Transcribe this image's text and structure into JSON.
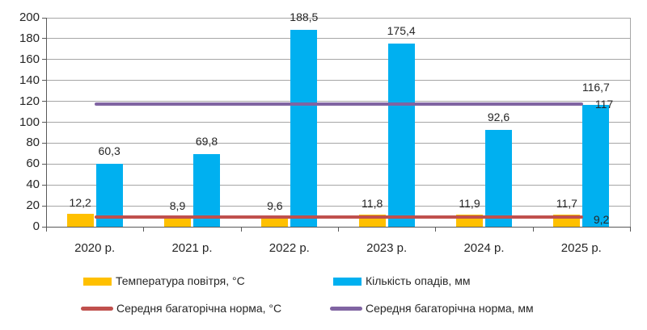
{
  "page": {
    "background": "#FFFFFF"
  },
  "colors": {
    "grid": "#A6A6A6",
    "axis": "#595959",
    "text": "#262626"
  },
  "chart_data": {
    "type": "bar",
    "title": "",
    "xlabel": "",
    "ylabel": "",
    "categories": [
      "2020 р.",
      "2021 р.",
      "2022 р.",
      "2023 р.",
      "2024 р.",
      "2025 р."
    ],
    "yticks": [
      "0",
      "20",
      "40",
      "60",
      "80",
      "100",
      "120",
      "140",
      "160",
      "180",
      "200"
    ],
    "ylim": [
      0,
      200
    ],
    "ytick_step": 20,
    "grid": true,
    "legend_position": "bottom",
    "series": [
      {
        "key": "temperature",
        "kind": "bar",
        "name": "Температура повітря, °С",
        "color": "#FFC000",
        "values": [
          12.2,
          8.9,
          9.6,
          11.8,
          11.9,
          11.7
        ],
        "labels": [
          "12,2",
          "8,9",
          "9,6",
          "11,8",
          "11,9",
          "11,7"
        ]
      },
      {
        "key": "precipitation",
        "kind": "bar",
        "name": "Кількість опадів, мм",
        "color": "#00B0F0",
        "values": [
          60.3,
          69.8,
          188.5,
          175.4,
          92.6,
          116.7
        ],
        "labels": [
          "60,3",
          "69,8",
          "188,5",
          "175,4",
          "92,6",
          "116,7"
        ]
      },
      {
        "key": "norm-temperature",
        "kind": "line",
        "name": "Середня багаторічна норма, °С",
        "color": "#C0504D",
        "value": 9.2,
        "label": "9,2"
      },
      {
        "key": "norm-precipitation",
        "kind": "line",
        "name": "Середня багаторічна норма, мм",
        "color": "#8064A2",
        "value": 117,
        "label": "117"
      }
    ]
  }
}
